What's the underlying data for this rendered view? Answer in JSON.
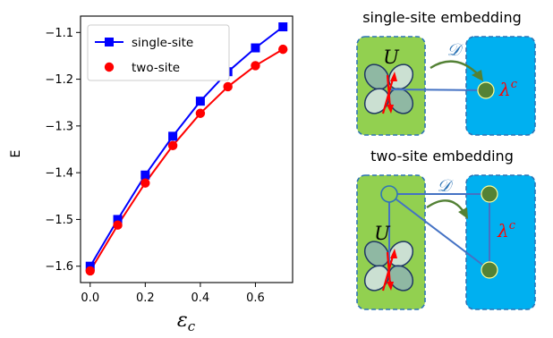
{
  "chart_data": {
    "type": "line",
    "xlabel": "ε",
    "xlabel_sub": "c",
    "ylabel": "E",
    "xlim": [
      -0.035,
      0.735
    ],
    "ylim": [
      -1.635,
      -1.065
    ],
    "xticks": [
      {
        "value": 0.0,
        "label": "0.0"
      },
      {
        "value": 0.2,
        "label": "0.2"
      },
      {
        "value": 0.4,
        "label": "0.4"
      },
      {
        "value": 0.6,
        "label": "0.6"
      }
    ],
    "yticks": [
      {
        "value": -1.1,
        "label": "−1.1"
      },
      {
        "value": -1.2,
        "label": "−1.2"
      },
      {
        "value": -1.3,
        "label": "−1.3"
      },
      {
        "value": -1.4,
        "label": "−1.4"
      },
      {
        "value": -1.5,
        "label": "−1.5"
      },
      {
        "value": -1.6,
        "label": "−1.6"
      }
    ],
    "legend_position": "top-left",
    "series": [
      {
        "name": "single-site",
        "color": "#0000ff",
        "marker": "square",
        "x": [
          0.0,
          0.1,
          0.2,
          0.3,
          0.4,
          0.5,
          0.6,
          0.7
        ],
        "y": [
          -1.6,
          -1.5,
          -1.405,
          -1.322,
          -1.247,
          -1.184,
          -1.133,
          -1.088
        ]
      },
      {
        "name": "two-site",
        "color": "#ff0000",
        "marker": "circle",
        "x": [
          0.0,
          0.1,
          0.2,
          0.3,
          0.4,
          0.5,
          0.6,
          0.7
        ],
        "y": [
          -1.61,
          -1.512,
          -1.422,
          -1.342,
          -1.273,
          -1.216,
          -1.171,
          -1.136
        ]
      }
    ]
  },
  "diagrams": {
    "top_title": "single-site embedding",
    "bottom_title": "two-site embedding",
    "U_label": "U",
    "D_label": "𝒟",
    "lambda_label": "λ",
    "lambda_sup": "c",
    "colors": {
      "green": "#92d050",
      "blue": "#00b0f0",
      "border": "#2e75b6",
      "node": "#548235",
      "arrow": "#538135",
      "line": "#4472c4",
      "spin": "#ff0000",
      "D_color": "#2e75b6"
    }
  }
}
